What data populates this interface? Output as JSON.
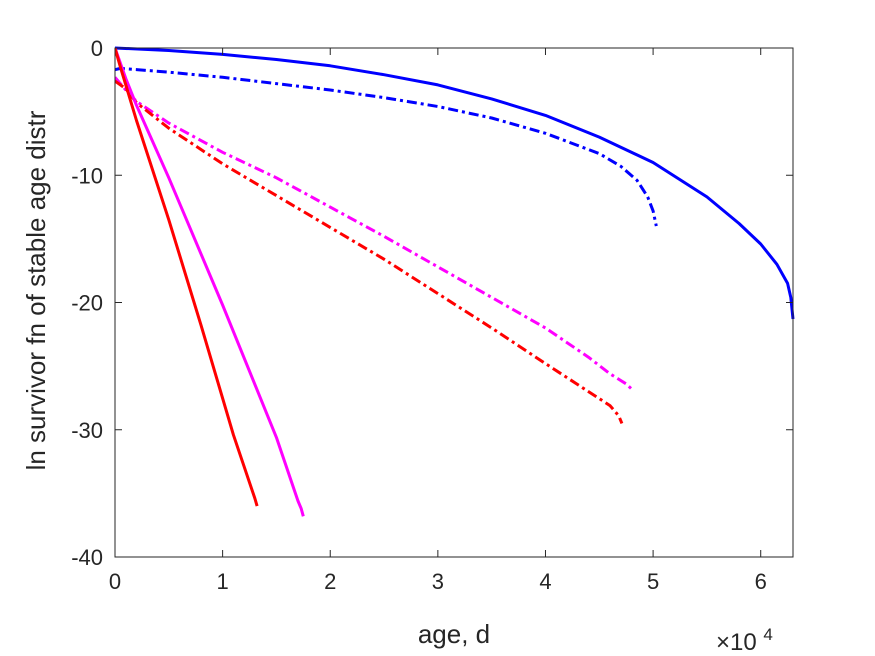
{
  "chart_data": {
    "type": "line",
    "xlabel": "age, d",
    "ylabel": "ln survivor fn of stable age distr",
    "x_exponent_label": {
      "base": "×10",
      "power": "4"
    },
    "xlim": [
      0,
      63000
    ],
    "ylim": [
      -40,
      0
    ],
    "x_ticks": [
      0,
      10000,
      20000,
      30000,
      40000,
      50000,
      60000
    ],
    "x_tick_labels": [
      "0",
      "1",
      "2",
      "3",
      "4",
      "5",
      "6"
    ],
    "y_ticks": [
      0,
      -10,
      -20,
      -30,
      -40
    ],
    "y_tick_labels": [
      "0",
      "-10",
      "-20",
      "-30",
      "-40"
    ],
    "grid": false,
    "box": true,
    "series": [
      {
        "color": "#0000ff",
        "style": "solid",
        "x": [
          0,
          5000,
          10000,
          15000,
          20000,
          25000,
          30000,
          35000,
          40000,
          45000,
          50000,
          55000,
          58000,
          60000,
          61500,
          62500,
          62800,
          63000
        ],
        "y": [
          0,
          -0.2,
          -0.5,
          -0.9,
          -1.4,
          -2.1,
          -2.9,
          -4.0,
          -5.3,
          -7.0,
          -9.0,
          -11.7,
          -13.8,
          -15.4,
          -17.0,
          -18.5,
          -19.6,
          -21.3
        ]
      },
      {
        "color": "#0000ff",
        "style": "dashdot",
        "x": [
          0,
          500,
          2000,
          5000,
          10000,
          15000,
          20000,
          25000,
          30000,
          35000,
          40000,
          45000,
          47000,
          48500,
          49500,
          50000,
          50300
        ],
        "y": [
          -1.7,
          -1.6,
          -1.7,
          -1.9,
          -2.3,
          -2.8,
          -3.3,
          -3.9,
          -4.6,
          -5.5,
          -6.7,
          -8.3,
          -9.3,
          -10.4,
          -11.7,
          -12.8,
          -14.0
        ]
      },
      {
        "color": "#ff00ff",
        "style": "dashdot",
        "x": [
          0,
          1000,
          2000,
          5000,
          10000,
          15000,
          20000,
          25000,
          30000,
          35000,
          40000,
          44000,
          46000,
          47500,
          48000
        ],
        "y": [
          -2.3,
          -3.3,
          -4.2,
          -5.9,
          -8.2,
          -10.2,
          -12.5,
          -14.8,
          -17.2,
          -19.6,
          -22.0,
          -24.3,
          -25.6,
          -26.4,
          -26.8
        ]
      },
      {
        "color": "#ff0000",
        "style": "dashdot",
        "x": [
          0,
          1000,
          2000,
          5000,
          10000,
          15000,
          20000,
          25000,
          30000,
          35000,
          40000,
          44000,
          46000,
          46800,
          47100
        ],
        "y": [
          -2.6,
          -3.2,
          -4.3,
          -6.3,
          -9.1,
          -11.6,
          -14.1,
          -16.6,
          -19.3,
          -22.0,
          -24.8,
          -27.0,
          -28.1,
          -28.9,
          -29.5
        ]
      },
      {
        "color": "#ff00ff",
        "style": "solid",
        "x": [
          0,
          500,
          1000,
          2000,
          5000,
          10000,
          15000,
          17000,
          17300,
          17500
        ],
        "y": [
          0,
          -1.2,
          -2.4,
          -4.5,
          -10.2,
          -20.2,
          -30.6,
          -35.6,
          -36.2,
          -36.8
        ]
      },
      {
        "color": "#ff0000",
        "style": "solid",
        "x": [
          0,
          500,
          1000,
          2000,
          5000,
          8000,
          11000,
          13000,
          13200
        ],
        "y": [
          0,
          -1.5,
          -2.9,
          -5.7,
          -13.5,
          -21.8,
          -30.4,
          -35.4,
          -36.0
        ]
      }
    ]
  }
}
